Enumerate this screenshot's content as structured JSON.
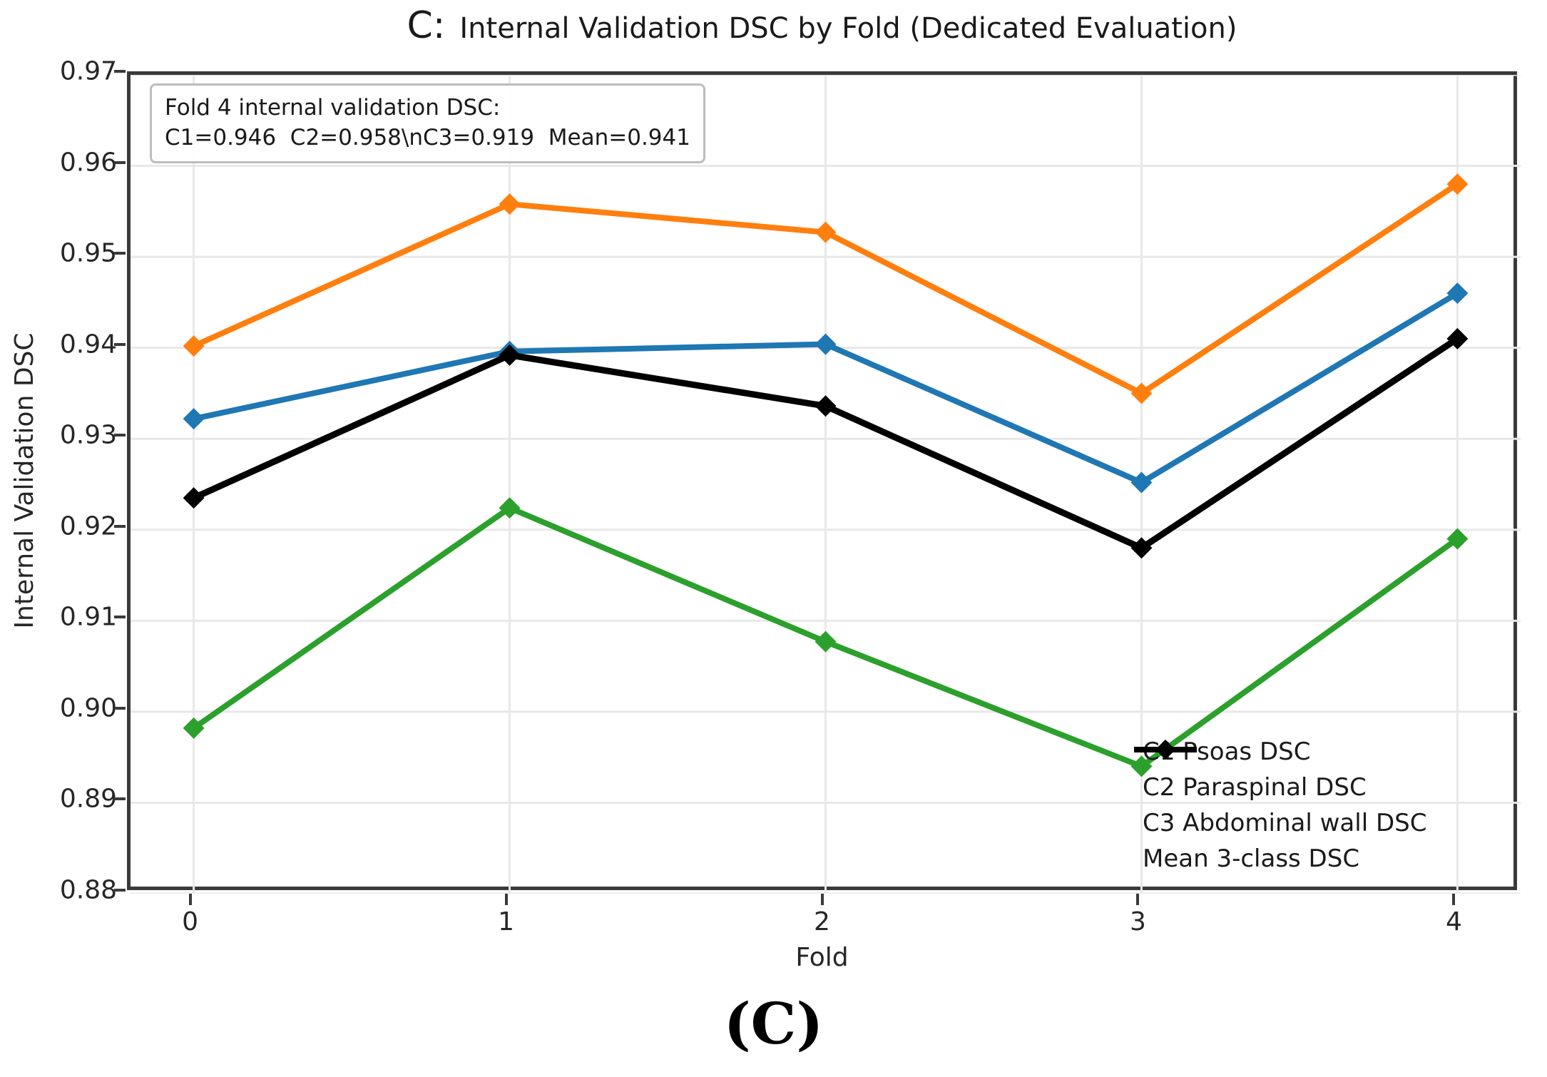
{
  "figure": {
    "panel_label": "C:",
    "title": "Internal Validation DSC by Fold (Dedicated Evaluation)",
    "caption": "(C)"
  },
  "chart_data": {
    "type": "line",
    "title": "C: Internal Validation DSC by Fold (Dedicated Evaluation)",
    "xlabel": "Fold",
    "ylabel": "Internal Validation DSC",
    "x": [
      0,
      1,
      2,
      3,
      4
    ],
    "xticks": [
      "0",
      "1",
      "2",
      "3",
      "4"
    ],
    "yticks": [
      0.97,
      0.96,
      0.95,
      0.94,
      0.93,
      0.92,
      0.91,
      0.9,
      0.89,
      0.88
    ],
    "xlim": [
      -0.2,
      4.2
    ],
    "ylim": [
      0.88,
      0.97
    ],
    "grid": true,
    "legend_position": "lower right",
    "marker": "diamond",
    "series": [
      {
        "name": "C1 Psoas DSC",
        "color": "#1f77b4",
        "values": [
          0.9322,
          0.9396,
          0.9404,
          0.9252,
          0.946
        ]
      },
      {
        "name": "C2 Paraspinal DSC",
        "color": "#ff7f0e",
        "values": [
          0.9402,
          0.9558,
          0.9527,
          0.935,
          0.958
        ]
      },
      {
        "name": "C3 Abdominal wall DSC",
        "color": "#2ca02c",
        "values": [
          0.8982,
          0.9224,
          0.9077,
          0.894,
          0.919
        ]
      },
      {
        "name": "Mean 3-class DSC",
        "color": "#000000",
        "values": [
          0.9235,
          0.9392,
          0.9336,
          0.918,
          0.941
        ]
      }
    ],
    "annotation": {
      "line1": "Fold 4 internal validation DSC:",
      "line2": "C1=0.946  C2=0.958\\nC3=0.919  Mean=0.941"
    },
    "colors": {
      "gridline": "#e8e8e8",
      "spine": "#3a3a3a",
      "tick_text": "#262626"
    }
  }
}
